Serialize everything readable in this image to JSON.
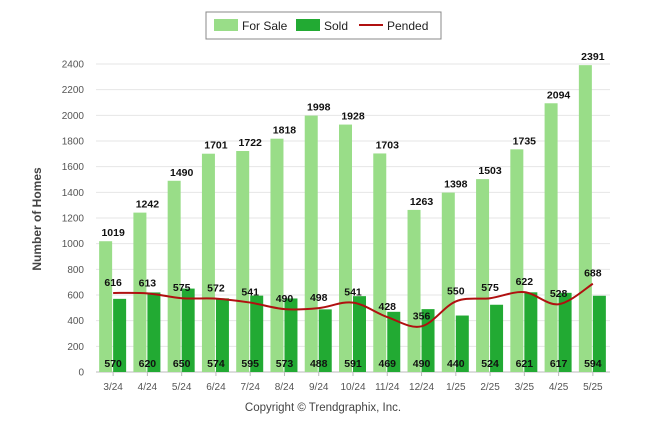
{
  "chart_data": {
    "type": "bar",
    "ylabel": "Number of Homes",
    "ylim": [
      0,
      2400
    ],
    "yticks": [
      0,
      200,
      400,
      600,
      800,
      1000,
      1200,
      1400,
      1600,
      1800,
      2000,
      2200,
      2400
    ],
    "grid": true,
    "legend_position": "top-center",
    "categories": [
      "3/24",
      "4/24",
      "5/24",
      "6/24",
      "7/24",
      "8/24",
      "9/24",
      "10/24",
      "11/24",
      "12/24",
      "1/25",
      "2/25",
      "3/25",
      "4/25",
      "5/25"
    ],
    "series": [
      {
        "name": "For Sale",
        "kind": "bar",
        "color": "#99dd88",
        "values": [
          1019,
          1242,
          1490,
          1701,
          1722,
          1818,
          1998,
          1928,
          1703,
          1263,
          1398,
          1503,
          1735,
          2094,
          2391
        ]
      },
      {
        "name": "Sold",
        "kind": "bar",
        "color": "#22aa33",
        "values": [
          570,
          620,
          650,
          574,
          595,
          573,
          488,
          591,
          469,
          490,
          440,
          524,
          621,
          617,
          594
        ]
      },
      {
        "name": "Pended",
        "kind": "line",
        "color": "#b01010",
        "values": [
          616,
          613,
          575,
          572,
          541,
          490,
          498,
          541,
          428,
          356,
          550,
          575,
          622,
          528,
          688
        ]
      }
    ]
  },
  "footer": {
    "copyright": "Copyright © Trendgraphix, Inc."
  }
}
